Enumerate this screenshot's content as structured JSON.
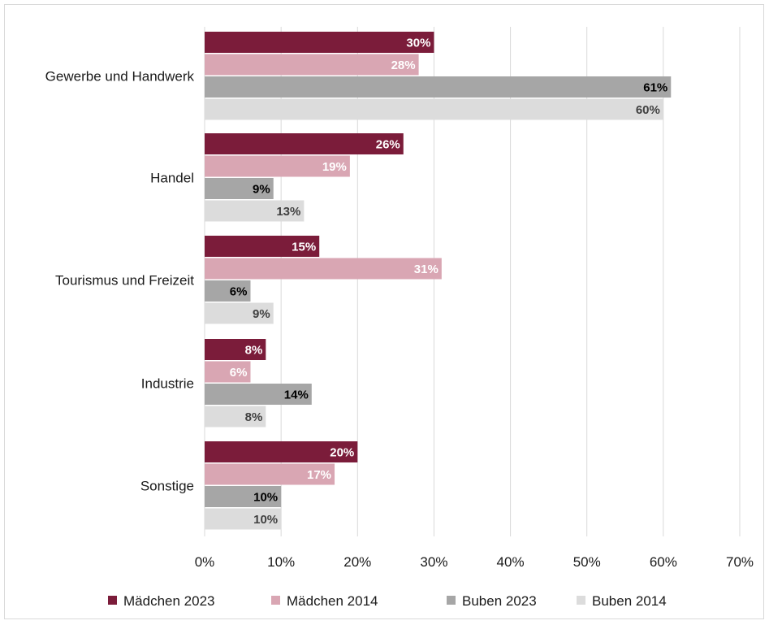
{
  "chart_data": {
    "type": "bar",
    "orientation": "horizontal",
    "categories": [
      "Gewerbe und Handwerk",
      "Handel",
      "Tourismus und Freizeit",
      "Industrie",
      "Sonstige"
    ],
    "series": [
      {
        "name": "Mädchen 2023",
        "color": "#7b1c3a",
        "values": [
          30,
          26,
          15,
          8,
          20
        ],
        "labels": [
          "30%",
          "26%",
          "15%",
          "8%",
          "20%"
        ],
        "label_color": "#ffffff"
      },
      {
        "name": "Mädchen 2014",
        "color": "#d9a6b3",
        "values": [
          28,
          19,
          31,
          6,
          17
        ],
        "labels": [
          "28%",
          "19%",
          "31%",
          "6%",
          "17%"
        ],
        "label_color": "#ffffff"
      },
      {
        "name": "Buben 2023",
        "color": "#a6a6a6",
        "values": [
          61,
          9,
          6,
          14,
          10
        ],
        "labels": [
          "61%",
          "9%",
          "6%",
          "14%",
          "10%"
        ],
        "label_color": "#000000"
      },
      {
        "name": "Buben 2014",
        "color": "#dcdcdc",
        "values": [
          60,
          13,
          9,
          8,
          10
        ],
        "labels": [
          "60%",
          "13%",
          "9%",
          "8%",
          "10%"
        ],
        "label_color": "#404040"
      }
    ],
    "xlim": [
      0,
      70
    ],
    "xticks": [
      "0%",
      "10%",
      "20%",
      "30%",
      "40%",
      "50%",
      "60%",
      "70%"
    ],
    "grid": true,
    "legend_position": "bottom",
    "title": "",
    "xlabel": "",
    "ylabel": ""
  }
}
